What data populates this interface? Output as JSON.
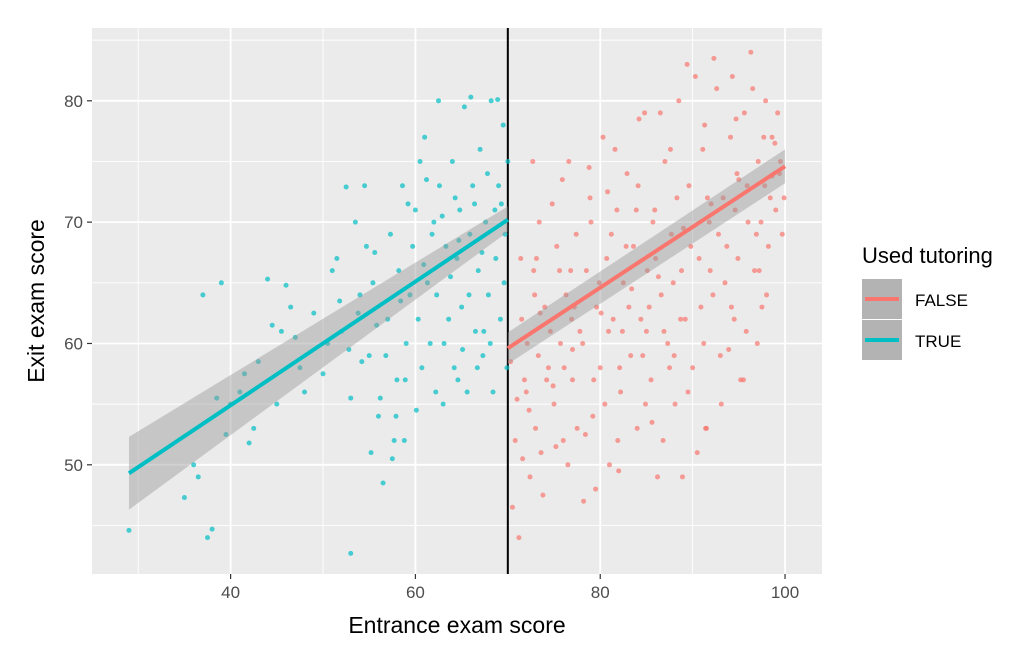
{
  "chart_data": {
    "type": "scatter",
    "title": "",
    "xlabel": "Entrance exam score",
    "ylabel": "Exit exam score",
    "xlim": [
      25,
      104
    ],
    "ylim": [
      41,
      86
    ],
    "x_ticks": [
      40,
      60,
      80,
      100
    ],
    "y_ticks": [
      50,
      60,
      70,
      80
    ],
    "cutoff": 70,
    "grid": true,
    "legend_position": "right",
    "legend": {
      "title": "Used tutoring",
      "entries": [
        {
          "label": "FALSE",
          "color": "#F8766D"
        },
        {
          "label": "TRUE",
          "color": "#00BFC4"
        }
      ]
    },
    "series": [
      {
        "name": "FALSE",
        "color": "#F8766D",
        "fit": {
          "x": [
            70,
            100
          ],
          "y": [
            59.6,
            74.6
          ],
          "se_lower": [
            58.3,
            73.2
          ],
          "se_upper": [
            60.9,
            76.0
          ]
        },
        "points": [
          [
            71,
            55.4
          ],
          [
            71.5,
            62
          ],
          [
            72,
            56
          ],
          [
            72.4,
            49
          ],
          [
            72.8,
            66
          ],
          [
            73,
            53
          ],
          [
            73.3,
            59
          ],
          [
            73.6,
            51
          ],
          [
            74,
            63
          ],
          [
            74.4,
            58
          ],
          [
            74.8,
            71.5
          ],
          [
            75,
            55
          ],
          [
            75.3,
            68
          ],
          [
            75.7,
            60
          ],
          [
            76,
            52
          ],
          [
            76.3,
            64
          ],
          [
            76.6,
            75
          ],
          [
            77,
            57
          ],
          [
            77.4,
            69
          ],
          [
            77.8,
            61
          ],
          [
            78.2,
            47
          ],
          [
            78.5,
            66
          ],
          [
            78.9,
            72
          ],
          [
            79.2,
            54
          ],
          [
            79.6,
            63
          ],
          [
            80,
            58
          ],
          [
            80.3,
            77
          ],
          [
            80.7,
            67
          ],
          [
            81,
            50
          ],
          [
            81.4,
            62
          ],
          [
            81.8,
            71
          ],
          [
            82.2,
            56
          ],
          [
            82.5,
            65
          ],
          [
            82.9,
            74
          ],
          [
            83.3,
            59
          ],
          [
            83.6,
            68
          ],
          [
            84,
            53
          ],
          [
            84.4,
            62
          ],
          [
            84.8,
            79
          ],
          [
            85.1,
            66
          ],
          [
            85.5,
            57
          ],
          [
            85.9,
            71
          ],
          [
            86.2,
            49
          ],
          [
            86.6,
            64
          ],
          [
            87,
            75
          ],
          [
            87.3,
            60
          ],
          [
            87.7,
            69
          ],
          [
            88.1,
            55
          ],
          [
            88.5,
            80
          ],
          [
            88.8,
            66
          ],
          [
            89.2,
            62
          ],
          [
            89.6,
            73
          ],
          [
            90,
            58
          ],
          [
            90.3,
            82
          ],
          [
            90.7,
            67
          ],
          [
            91.1,
            76
          ],
          [
            91.5,
            53
          ],
          [
            91.8,
            70
          ],
          [
            92.2,
            64
          ],
          [
            92.6,
            81
          ],
          [
            93,
            59
          ],
          [
            93.3,
            72
          ],
          [
            93.7,
            68
          ],
          [
            94.1,
            77
          ],
          [
            94.5,
            62
          ],
          [
            94.8,
            74
          ],
          [
            95.2,
            57
          ],
          [
            95.6,
            79
          ],
          [
            96,
            70
          ],
          [
            96.3,
            84
          ],
          [
            96.7,
            66
          ],
          [
            97.1,
            75
          ],
          [
            97.5,
            63
          ],
          [
            97.8,
            73
          ],
          [
            98.2,
            68
          ],
          [
            98.6,
            77
          ],
          [
            99,
            71
          ],
          [
            99.4,
            74
          ],
          [
            70.5,
            46.5
          ],
          [
            71.2,
            44
          ],
          [
            73.8,
            47.5
          ],
          [
            76.5,
            50
          ],
          [
            79.5,
            48
          ],
          [
            82,
            49.5
          ],
          [
            86.8,
            52
          ],
          [
            88.9,
            49
          ],
          [
            91.4,
            53
          ],
          [
            95.5,
            57
          ],
          [
            97,
            60
          ],
          [
            72.7,
            75
          ],
          [
            75.9,
            73.5
          ],
          [
            78.8,
            74.5
          ],
          [
            81.6,
            76
          ],
          [
            84.2,
            78.5
          ],
          [
            86.5,
            79
          ],
          [
            89.4,
            83
          ],
          [
            92.3,
            83.5
          ],
          [
            94.3,
            82
          ],
          [
            96.5,
            81
          ],
          [
            98.9,
            76.5
          ],
          [
            99.7,
            69
          ],
          [
            99.9,
            72
          ],
          [
            98,
            64
          ],
          [
            95.8,
            61
          ],
          [
            93.1,
            55
          ],
          [
            90.5,
            51
          ],
          [
            87.5,
            58
          ],
          [
            84.9,
            55
          ],
          [
            80.9,
            61
          ],
          [
            77.2,
            63
          ],
          [
            74.2,
            57
          ],
          [
            72.1,
            60
          ],
          [
            71.4,
            67
          ],
          [
            73.4,
            70
          ],
          [
            76.8,
            66
          ],
          [
            79,
            70
          ],
          [
            82.8,
            68
          ],
          [
            85.7,
            70
          ],
          [
            88.3,
            72
          ],
          [
            91.9,
            66
          ],
          [
            94.9,
            67
          ],
          [
            97.4,
            70
          ],
          [
            99.2,
            79
          ],
          [
            70.8,
            52
          ],
          [
            71.8,
            57
          ],
          [
            72.9,
            64
          ],
          [
            74.6,
            61
          ],
          [
            75.6,
            66
          ],
          [
            77.5,
            53
          ],
          [
            78.1,
            60
          ],
          [
            79.9,
            65
          ],
          [
            80.5,
            55
          ],
          [
            81.2,
            69
          ],
          [
            82.4,
            61
          ],
          [
            83.1,
            63
          ],
          [
            83.9,
            71
          ],
          [
            84.6,
            59
          ],
          [
            85.3,
            63
          ],
          [
            86,
            67
          ],
          [
            86.9,
            61
          ],
          [
            87.9,
            65
          ],
          [
            88.7,
            62
          ],
          [
            89.8,
            68
          ],
          [
            90.9,
            63
          ],
          [
            91.6,
            72
          ],
          [
            92.8,
            69
          ],
          [
            93.5,
            65
          ],
          [
            94.6,
            71
          ],
          [
            95.9,
            73
          ],
          [
            96.9,
            69
          ],
          [
            97.7,
            77
          ],
          [
            98.4,
            72
          ],
          [
            99.5,
            75
          ],
          [
            72.3,
            54.5
          ],
          [
            74.9,
            56.5
          ],
          [
            77,
            59.5
          ],
          [
            80.1,
            62.5
          ],
          [
            83.4,
            64.5
          ],
          [
            86.3,
            65.5
          ],
          [
            89,
            69.5
          ],
          [
            92,
            71.5
          ],
          [
            95,
            73.5
          ],
          [
            98.6,
            73.8
          ],
          [
            73.1,
            67
          ],
          [
            76.1,
            58
          ],
          [
            79.3,
            57
          ],
          [
            82.1,
            58
          ],
          [
            85,
            61
          ],
          [
            88,
            59
          ],
          [
            91.2,
            60
          ],
          [
            94.2,
            63
          ],
          [
            97.2,
            66
          ],
          [
            71.6,
            50.5
          ],
          [
            75.2,
            51.5
          ],
          [
            78.4,
            52.5
          ],
          [
            81.9,
            52
          ],
          [
            85.6,
            53.5
          ],
          [
            89.5,
            56
          ],
          [
            93.9,
            59.5
          ],
          [
            70.3,
            58.5
          ],
          [
            73.5,
            62.5
          ],
          [
            76.9,
            62
          ],
          [
            80.8,
            72.5
          ],
          [
            84.1,
            73
          ],
          [
            87.6,
            76
          ],
          [
            91.3,
            78
          ],
          [
            94.7,
            78.5
          ],
          [
            97.9,
            80
          ]
        ]
      },
      {
        "name": "TRUE",
        "color": "#00BFC4",
        "fit": {
          "x": [
            29,
            70
          ],
          "y": [
            49.3,
            70.2
          ],
          "se_lower": [
            46.3,
            69.2
          ],
          "se_upper": [
            52.3,
            71.3
          ]
        },
        "points": [
          [
            29,
            44.6
          ],
          [
            35,
            47.3
          ],
          [
            36,
            50
          ],
          [
            37,
            64
          ],
          [
            37.5,
            44
          ],
          [
            38,
            44.7
          ],
          [
            39,
            65
          ],
          [
            40,
            55
          ],
          [
            41,
            56
          ],
          [
            42,
            51.8
          ],
          [
            43,
            58.5
          ],
          [
            44,
            65.3
          ],
          [
            44.5,
            61.5
          ],
          [
            45,
            55
          ],
          [
            46,
            64.8
          ],
          [
            47,
            60.5
          ],
          [
            48,
            56
          ],
          [
            50,
            57.5
          ],
          [
            51,
            66
          ],
          [
            52,
            61
          ],
          [
            52.5,
            72.9
          ],
          [
            53,
            55.5
          ],
          [
            53.5,
            70
          ],
          [
            54,
            64
          ],
          [
            54.5,
            73
          ],
          [
            55,
            59
          ],
          [
            55.2,
            51
          ],
          [
            55.6,
            67.5
          ],
          [
            56,
            54
          ],
          [
            56.5,
            48.5
          ],
          [
            57,
            62
          ],
          [
            57.3,
            69
          ],
          [
            57.7,
            52
          ],
          [
            58,
            57
          ],
          [
            58.2,
            66
          ],
          [
            58.6,
            73
          ],
          [
            59,
            60
          ],
          [
            59.4,
            64
          ],
          [
            59.7,
            68
          ],
          [
            60,
            71
          ],
          [
            60.3,
            62
          ],
          [
            60.7,
            58
          ],
          [
            61,
            77
          ],
          [
            61.3,
            65
          ],
          [
            61.6,
            60
          ],
          [
            62,
            70
          ],
          [
            62.3,
            64
          ],
          [
            62.6,
            73
          ],
          [
            63,
            55
          ],
          [
            63.3,
            68
          ],
          [
            63.6,
            62
          ],
          [
            64,
            75
          ],
          [
            64.2,
            58
          ],
          [
            64.5,
            67
          ],
          [
            64.8,
            71
          ],
          [
            65,
            63
          ],
          [
            65.3,
            79.5
          ],
          [
            65.6,
            56
          ],
          [
            65.9,
            69
          ],
          [
            66.2,
            73
          ],
          [
            66.5,
            61
          ],
          [
            66.8,
            66
          ],
          [
            67,
            76
          ],
          [
            67.3,
            59
          ],
          [
            67.6,
            70
          ],
          [
            67.9,
            64
          ],
          [
            68.2,
            80
          ],
          [
            68.4,
            56
          ],
          [
            68.7,
            67
          ],
          [
            69,
            73
          ],
          [
            69.2,
            62
          ],
          [
            69.5,
            78
          ],
          [
            69.7,
            69
          ],
          [
            69.9,
            58
          ],
          [
            70,
            75
          ],
          [
            53,
            42.7
          ],
          [
            57.5,
            50.5
          ],
          [
            60.5,
            75
          ],
          [
            62.5,
            80
          ],
          [
            66,
            80.3
          ],
          [
            68.9,
            80.1
          ],
          [
            64.3,
            72
          ],
          [
            61.8,
            69
          ],
          [
            59.2,
            71.5
          ],
          [
            58.4,
            63.5
          ],
          [
            56.8,
            59
          ],
          [
            55.8,
            61.5
          ],
          [
            54.2,
            58.5
          ],
          [
            51.5,
            67
          ],
          [
            49,
            62.5
          ],
          [
            47.5,
            58
          ],
          [
            46.5,
            63
          ],
          [
            45.5,
            61
          ],
          [
            42.5,
            53
          ],
          [
            41.5,
            57.5
          ],
          [
            39.5,
            52.5
          ],
          [
            38.5,
            55.5
          ],
          [
            36.5,
            49
          ],
          [
            60.9,
            66.5
          ],
          [
            62.9,
            70.5
          ],
          [
            64.7,
            68.5
          ],
          [
            66.4,
            71.5
          ],
          [
            67.8,
            74
          ],
          [
            69.3,
            71.5
          ],
          [
            63.8,
            65.5
          ],
          [
            65.8,
            64
          ],
          [
            67.2,
            67.5
          ],
          [
            68.6,
            71
          ],
          [
            61.2,
            73.5
          ],
          [
            58.9,
            57
          ],
          [
            57.9,
            54
          ],
          [
            63.1,
            60
          ],
          [
            65.1,
            59.5
          ],
          [
            67.4,
            61
          ],
          [
            69.6,
            65
          ],
          [
            68.1,
            60
          ],
          [
            66.7,
            58
          ],
          [
            64.6,
            57
          ],
          [
            62.2,
            56
          ],
          [
            60.1,
            54.5
          ],
          [
            58.8,
            52
          ],
          [
            56.2,
            55.5
          ],
          [
            55.4,
            65
          ],
          [
            54.7,
            68
          ],
          [
            53.8,
            62.5
          ],
          [
            52.8,
            59.5
          ],
          [
            51.8,
            63.5
          ],
          [
            50.5,
            60
          ]
        ]
      }
    ]
  }
}
